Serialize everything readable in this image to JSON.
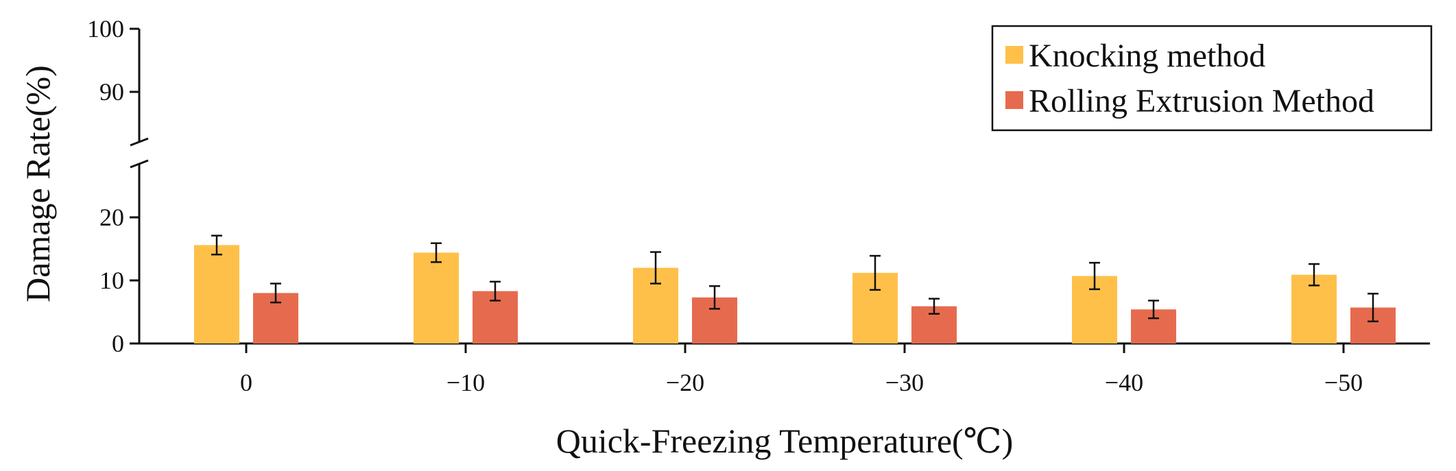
{
  "chart_data": {
    "type": "bar",
    "categories": [
      "0",
      "−10",
      "−20",
      "−30",
      "−40",
      "−50"
    ],
    "series": [
      {
        "name": "Knocking method",
        "color": "#FFC04A",
        "values": [
          15.6,
          14.4,
          12.0,
          11.2,
          10.7,
          10.9
        ],
        "errors": [
          1.5,
          1.5,
          2.5,
          2.7,
          2.1,
          1.7
        ]
      },
      {
        "name": "Rolling Extrusion Method",
        "color": "#E66B4E",
        "values": [
          8.0,
          8.3,
          7.3,
          5.9,
          5.4,
          5.7
        ],
        "errors": [
          1.5,
          1.5,
          1.8,
          1.2,
          1.4,
          2.2
        ]
      }
    ],
    "xlabel": "Quick-Freezing Temperature(℃)",
    "ylabel": "Damage Rate(%)",
    "y_lower": {
      "range": [
        0,
        25
      ],
      "ticks": [
        0,
        10,
        20
      ],
      "tick_labels": [
        "0",
        "10",
        "20"
      ]
    },
    "y_upper": {
      "range": [
        80,
        100
      ],
      "ticks": [
        90,
        100
      ],
      "tick_labels": [
        "90",
        "100"
      ]
    },
    "axis_break": true,
    "grid": false,
    "legend_position": "top-right"
  }
}
